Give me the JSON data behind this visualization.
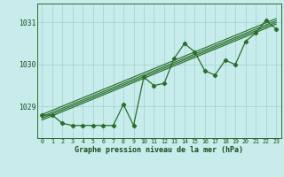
{
  "x": [
    0,
    1,
    2,
    3,
    4,
    5,
    6,
    7,
    8,
    9,
    10,
    11,
    12,
    13,
    14,
    15,
    16,
    17,
    18,
    19,
    20,
    21,
    22,
    23
  ],
  "y_main": [
    1028.8,
    1028.8,
    1028.6,
    1028.55,
    1028.55,
    1028.55,
    1028.55,
    1028.55,
    1029.05,
    1028.55,
    1029.7,
    1029.5,
    1029.55,
    1030.15,
    1030.5,
    1030.3,
    1029.85,
    1029.75,
    1030.1,
    1030.0,
    1030.55,
    1030.75,
    1031.05,
    1030.85
  ],
  "line_color": "#2a6e2a",
  "bg_color": "#c8ecec",
  "grid_color": "#a8d4d4",
  "ylabel_values": [
    1029,
    1030,
    1031
  ],
  "xlabel_label": "Graphe pression niveau de la mer (hPa)",
  "ylim": [
    1028.25,
    1031.45
  ],
  "xlim": [
    -0.5,
    23.5
  ],
  "trend_x0": 0,
  "trend_y0": 1028.72,
  "trend_x1": 23,
  "trend_y1": 1031.0,
  "trend_offsets": [
    -0.04,
    0.0,
    0.04,
    0.09
  ]
}
